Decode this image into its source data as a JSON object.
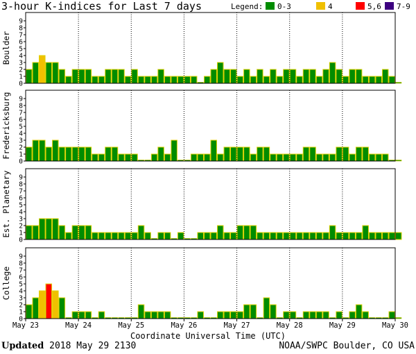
{
  "title": "3-hour K-indices for Last 7 days",
  "legend": {
    "label": "Legend:",
    "items": [
      {
        "label": "0-3",
        "color": "#008c00"
      },
      {
        "label": "4",
        "color": "#f0c000"
      },
      {
        "label": "5,6",
        "color": "#ff0000"
      },
      {
        "label": "7-9",
        "color": "#3c0080"
      }
    ]
  },
  "footer": {
    "updated_label": "Updated",
    "updated_value": "2018 May 29 2130",
    "source": "NOAA/SWPC Boulder, CO USA"
  },
  "chart_data": {
    "type": "bar",
    "xlabel": "Coordinate Universal Time (UTC)",
    "x_ticks": [
      "May 23",
      "May 24",
      "May 25",
      "May 26",
      "May 27",
      "May 28",
      "May 29",
      "May 30"
    ],
    "y_ticks": [
      "0",
      "1",
      "2",
      "3",
      "4",
      "5",
      "6",
      "7",
      "8",
      "9"
    ],
    "ylim": [
      0,
      9
    ],
    "interval": "3-hour",
    "colors": {
      "0-3": "#008c00",
      "4": "#f0c000",
      "5,6": "#ff0000",
      "7-9": "#3c0080"
    },
    "panels": [
      {
        "name": "Boulder",
        "values": [
          2,
          3,
          4,
          3,
          3,
          2,
          1,
          2,
          2,
          2,
          1,
          1,
          2,
          2,
          2,
          1,
          2,
          1,
          1,
          1,
          2,
          1,
          1,
          1,
          1,
          1,
          0,
          1,
          2,
          3,
          2,
          2,
          1,
          2,
          1,
          2,
          1,
          2,
          1,
          2,
          2,
          1,
          2,
          2,
          1,
          2,
          3,
          2,
          1,
          2,
          2,
          1,
          1,
          1,
          2,
          1,
          0
        ]
      },
      {
        "name": "Fredericksburg",
        "values": [
          2,
          3,
          3,
          2,
          3,
          2,
          2,
          2,
          2,
          2,
          1,
          1,
          2,
          2,
          1,
          1,
          1,
          0,
          0,
          1,
          2,
          1,
          3,
          0,
          0,
          1,
          1,
          1,
          3,
          1,
          2,
          2,
          2,
          2,
          1,
          2,
          2,
          1,
          1,
          1,
          1,
          1,
          2,
          2,
          1,
          1,
          1,
          2,
          2,
          1,
          2,
          2,
          1,
          1,
          1,
          0,
          0
        ]
      },
      {
        "name": "Est. Planetary",
        "values": [
          2,
          2,
          3,
          3,
          3,
          2,
          1,
          2,
          2,
          2,
          1,
          1,
          1,
          1,
          1,
          1,
          1,
          2,
          1,
          0,
          1,
          1,
          0,
          1,
          0,
          0,
          1,
          1,
          1,
          2,
          1,
          1,
          2,
          2,
          2,
          1,
          1,
          1,
          1,
          1,
          1,
          1,
          1,
          1,
          1,
          1,
          2,
          1,
          1,
          1,
          1,
          2,
          1,
          1,
          1,
          1,
          1
        ]
      },
      {
        "name": "College",
        "values": [
          2,
          3,
          4,
          5,
          4,
          3,
          0,
          1,
          1,
          1,
          0,
          1,
          0,
          0,
          0,
          0,
          0,
          2,
          1,
          1,
          1,
          1,
          0,
          0,
          0,
          0,
          1,
          0,
          0,
          1,
          1,
          1,
          1,
          2,
          2,
          0,
          3,
          2,
          0,
          1,
          1,
          0,
          1,
          1,
          1,
          1,
          0,
          1,
          0,
          1,
          2,
          1,
          0,
          0,
          0,
          1,
          0
        ]
      }
    ]
  }
}
